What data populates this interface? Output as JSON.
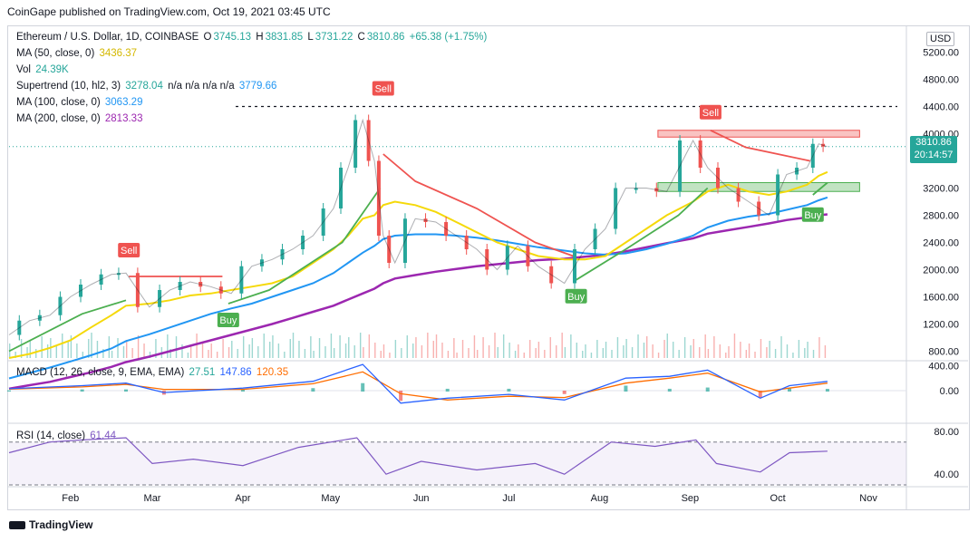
{
  "header": {
    "published": "CoinGape published on TradingView.com, Oct 19, 2021 03:45 UTC"
  },
  "legend": {
    "title": "Ethereum / U.S. Dollar, 1D, COINBASE",
    "o_label": "O",
    "o": "3745.13",
    "h_label": "H",
    "h": "3831.85",
    "l_label": "L",
    "l": "3731.22",
    "c_label": "C",
    "c": "3810.86",
    "chg": "+65.38 (+1.75%)",
    "ma50_label": "MA (50, close, 0)",
    "ma50": "3436.37",
    "vol_label": "Vol",
    "vol": "24.39K",
    "st_label": "Supertrend (10, hl2, 3)",
    "st_v1": "3278.04",
    "st_na": "n/a  n/a  n/a  n/a",
    "st_v2": "3779.66",
    "ma100_label": "MA (100, close, 0)",
    "ma100": "3063.29",
    "ma200_label": "MA (200, close, 0)",
    "ma200": "2813.33"
  },
  "currency": "USD",
  "last_price": "3810.86",
  "countdown": "20:14:57",
  "signals": {
    "sell": "Sell",
    "buy": "Buy"
  },
  "macd_label": "MACD (12, 26, close, 9, EMA, EMA)",
  "macd_values": {
    "hist": "27.51",
    "macd": "147.86",
    "signal": "120.35"
  },
  "rsi_label": "RSI (14, close)",
  "rsi_value": "61.44",
  "footer": {
    "brand": "TradingView"
  },
  "colors": {
    "up": "#26a69a",
    "down": "#ef5350",
    "ma50": "#f5d90a",
    "ma100": "#2196f3",
    "ma200": "#9c27b0",
    "supertrend_up": "#4caf50",
    "supertrend_down": "#ef5350",
    "rsi": "#7e57c2",
    "macd": "#2962ff",
    "signal": "#ff6d00"
  },
  "chart_data": {
    "type": "line",
    "title": "Ethereum / U.S. Dollar, 1D, COINBASE",
    "y_ticks": [
      "5200.00",
      "4800.00",
      "4400.00",
      "4000.00",
      "3200.00",
      "2800.00",
      "2400.00",
      "2000.00",
      "1600.00",
      "1200.00",
      "800.00"
    ],
    "x_ticks": [
      "Feb",
      "Mar",
      "Apr",
      "May",
      "Jun",
      "Jul",
      "Aug",
      "Sep",
      "Oct",
      "Nov"
    ],
    "ylim": [
      700,
      5300
    ],
    "x_range": [
      "2021-01-11",
      "2021-11-14"
    ],
    "dashed_level": 4400,
    "zones": [
      {
        "type": "resistance",
        "from": 3950,
        "to": 4050,
        "start": "2021-08-21",
        "end": "2021-10-29"
      },
      {
        "type": "support",
        "from": 3150,
        "to": 3280,
        "start": "2021-08-21",
        "end": "2021-10-29"
      }
    ],
    "price": {
      "x": [
        "2021-01-11",
        "2021-01-18",
        "2021-01-25",
        "2021-02-01",
        "2021-02-08",
        "2021-02-15",
        "2021-02-20",
        "2021-02-28",
        "2021-03-07",
        "2021-03-14",
        "2021-03-21",
        "2021-03-28",
        "2021-04-04",
        "2021-04-11",
        "2021-04-18",
        "2021-04-25",
        "2021-05-02",
        "2021-05-07",
        "2021-05-12",
        "2021-05-16",
        "2021-05-19",
        "2021-05-23",
        "2021-05-30",
        "2021-06-06",
        "2021-06-13",
        "2021-06-20",
        "2021-06-27",
        "2021-07-04",
        "2021-07-11",
        "2021-07-20",
        "2021-07-27",
        "2021-08-03",
        "2021-08-10",
        "2021-08-17",
        "2021-08-24",
        "2021-09-02",
        "2021-09-07",
        "2021-09-14",
        "2021-09-21",
        "2021-09-28",
        "2021-10-04",
        "2021-10-11",
        "2021-10-15",
        "2021-10-18"
      ],
      "values": [
        1040,
        1250,
        1330,
        1600,
        1780,
        1930,
        1950,
        1450,
        1700,
        1820,
        1750,
        1650,
        2050,
        2150,
        2300,
        2500,
        2900,
        3500,
        4200,
        3600,
        2500,
        2100,
        2750,
        2700,
        2500,
        2300,
        2000,
        2350,
        2050,
        1800,
        2300,
        2600,
        3200,
        3200,
        3150,
        3900,
        3500,
        3200,
        3000,
        2800,
        3400,
        3500,
        3850,
        3810
      ],
      "ma50": [
        700,
        760,
        850,
        960,
        1150,
        1330,
        1470,
        1500,
        1550,
        1620,
        1650,
        1700,
        1750,
        1800,
        1900,
        2100,
        2300,
        2500,
        2750,
        2800,
        2950,
        3000,
        2950,
        2850,
        2700,
        2550,
        2400,
        2300,
        2200,
        2150,
        2150,
        2200,
        2400,
        2600,
        2800,
        3000,
        3150,
        3250,
        3150,
        3100,
        3150,
        3250,
        3380,
        3436
      ],
      "ma100": [
        400,
        480,
        560,
        650,
        740,
        840,
        950,
        1050,
        1150,
        1250,
        1350,
        1430,
        1500,
        1600,
        1700,
        1800,
        1950,
        2100,
        2250,
        2350,
        2450,
        2500,
        2520,
        2520,
        2500,
        2470,
        2430,
        2380,
        2330,
        2280,
        2240,
        2220,
        2240,
        2300,
        2380,
        2500,
        2620,
        2720,
        2780,
        2820,
        2880,
        2950,
        3020,
        3063
      ],
      "ma200": [
        250,
        300,
        350,
        420,
        490,
        570,
        640,
        720,
        800,
        880,
        960,
        1040,
        1120,
        1200,
        1290,
        1380,
        1470,
        1560,
        1650,
        1720,
        1800,
        1870,
        1920,
        1970,
        2010,
        2050,
        2080,
        2110,
        2140,
        2160,
        2190,
        2220,
        2270,
        2330,
        2390,
        2460,
        2530,
        2580,
        2630,
        2680,
        2730,
        2770,
        2800,
        2813
      ]
    },
    "supertrend": [
      {
        "dir": "up",
        "x": [
          "2021-01-11",
          "2021-02-05",
          "2021-02-20"
        ],
        "values": [
          800,
          1350,
          1550
        ]
      },
      {
        "dir": "down",
        "x": [
          "2021-02-21",
          "2021-03-25"
        ],
        "values": [
          1900,
          1900
        ]
      },
      {
        "dir": "up",
        "x": [
          "2021-03-27",
          "2021-04-10",
          "2021-05-05",
          "2021-05-18"
        ],
        "values": [
          1500,
          1700,
          2400,
          3200
        ]
      },
      {
        "dir": "down",
        "x": [
          "2021-05-19",
          "2021-05-30",
          "2021-06-20",
          "2021-07-10",
          "2021-07-23"
        ],
        "values": [
          3700,
          3300,
          2900,
          2400,
          2200
        ]
      },
      {
        "dir": "up",
        "x": [
          "2021-07-24",
          "2021-08-10",
          "2021-08-28",
          "2021-09-07"
        ],
        "values": [
          1850,
          2300,
          2800,
          3200
        ]
      },
      {
        "dir": "down",
        "x": [
          "2021-09-08",
          "2021-09-20",
          "2021-10-01",
          "2021-10-12"
        ],
        "values": [
          4050,
          3800,
          3700,
          3600
        ]
      },
      {
        "dir": "up",
        "x": [
          "2021-10-13",
          "2021-10-18"
        ],
        "values": [
          3100,
          3280
        ]
      }
    ],
    "signals": [
      {
        "type": "sell",
        "x": "2021-02-21",
        "y": 2020
      },
      {
        "type": "buy",
        "x": "2021-03-27",
        "y": 1500
      },
      {
        "type": "sell",
        "x": "2021-05-19",
        "y": 4400
      },
      {
        "type": "buy",
        "x": "2021-07-24",
        "y": 1850
      },
      {
        "type": "sell",
        "x": "2021-09-08",
        "y": 4050
      },
      {
        "type": "buy",
        "x": "2021-10-13",
        "y": 3050
      }
    ],
    "macd": {
      "y_ticks": [
        "400.00",
        "0.00"
      ],
      "ylim": [
        -450,
        450
      ],
      "x": [
        "2021-01-11",
        "2021-02-05",
        "2021-02-20",
        "2021-03-05",
        "2021-04-01",
        "2021-04-25",
        "2021-05-12",
        "2021-05-25",
        "2021-06-10",
        "2021-07-01",
        "2021-07-20",
        "2021-08-10",
        "2021-08-25",
        "2021-09-07",
        "2021-09-25",
        "2021-10-05",
        "2021-10-18"
      ],
      "macd": [
        30,
        80,
        120,
        -30,
        40,
        150,
        420,
        -200,
        -120,
        -60,
        -150,
        200,
        230,
        330,
        -120,
        80,
        148
      ],
      "signal": [
        25,
        60,
        100,
        20,
        20,
        110,
        300,
        -50,
        -150,
        -90,
        -110,
        120,
        200,
        280,
        -20,
        40,
        120
      ]
    },
    "rsi": {
      "y_ticks": [
        "80.00",
        "40.00"
      ],
      "ylim": [
        30,
        85
      ],
      "bands": [
        70,
        30
      ],
      "x": [
        "2021-01-11",
        "2021-01-25",
        "2021-02-05",
        "2021-02-20",
        "2021-03-01",
        "2021-03-15",
        "2021-04-01",
        "2021-04-20",
        "2021-05-10",
        "2021-05-20",
        "2021-06-01",
        "2021-06-20",
        "2021-07-10",
        "2021-07-20",
        "2021-08-05",
        "2021-08-20",
        "2021-09-03",
        "2021-09-10",
        "2021-09-25",
        "2021-10-05",
        "2021-10-18"
      ],
      "values": [
        60,
        70,
        72,
        74,
        50,
        54,
        48,
        65,
        74,
        40,
        52,
        44,
        50,
        40,
        70,
        66,
        72,
        50,
        42,
        60,
        61.44
      ]
    }
  }
}
